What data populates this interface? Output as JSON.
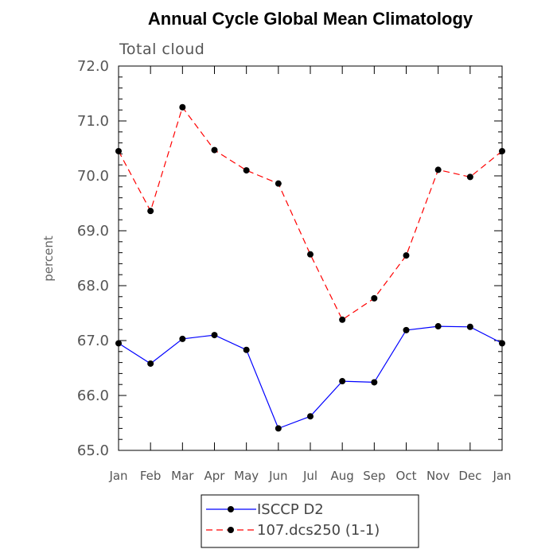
{
  "chart_data": {
    "type": "line",
    "title": "Annual Cycle Global Mean Climatology",
    "subtitle": "Total cloud",
    "xlabel": "",
    "ylabel": "percent",
    "categories": [
      "Jan",
      "Feb",
      "Mar",
      "Apr",
      "May",
      "Jun",
      "Jul",
      "Aug",
      "Sep",
      "Oct",
      "Nov",
      "Dec",
      "Jan"
    ],
    "ylim": [
      65.0,
      72.0
    ],
    "yticks": [
      "65.0",
      "66.0",
      "67.0",
      "68.0",
      "69.0",
      "70.0",
      "71.0",
      "72.0"
    ],
    "grid": false,
    "legend_position": "bottom",
    "series": [
      {
        "name": "ISCCP D2",
        "color": "#0000ff",
        "style": "solid",
        "marker": "filled-circle",
        "values": [
          66.95,
          66.58,
          67.03,
          67.1,
          66.83,
          65.4,
          65.62,
          66.26,
          66.24,
          67.19,
          67.26,
          67.25,
          66.95
        ]
      },
      {
        "name": "107.dcs250 (1-1)",
        "color": "#ff0000",
        "style": "dashed",
        "marker": "filled-circle",
        "values": [
          70.45,
          69.36,
          71.25,
          70.47,
          70.1,
          69.86,
          68.57,
          67.38,
          67.77,
          68.55,
          70.11,
          69.98,
          70.45
        ]
      }
    ]
  }
}
